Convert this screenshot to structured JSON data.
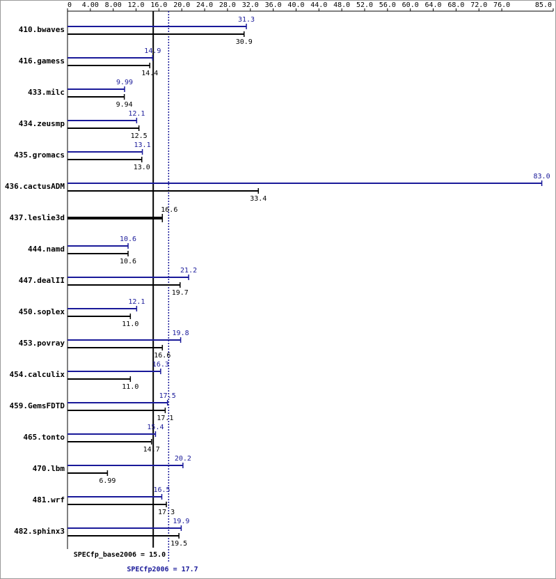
{
  "chart_data": {
    "type": "hbar",
    "categories": [
      "410.bwaves",
      "416.gamess",
      "433.milc",
      "434.zeusmp",
      "435.gromacs",
      "436.cactusADM",
      "437.leslie3d",
      "444.namd",
      "447.dealII",
      "450.soplex",
      "453.povray",
      "454.calculix",
      "459.GemsFDTD",
      "465.tonto",
      "470.lbm",
      "481.wrf",
      "482.sphinx3"
    ],
    "series": [
      {
        "color": "#191999",
        "values": [
          31.3,
          14.9,
          9.99,
          12.1,
          13.1,
          83.0,
          null,
          10.6,
          21.2,
          12.1,
          19.8,
          16.3,
          17.5,
          15.4,
          20.2,
          16.5,
          19.9
        ],
        "value_labels": [
          "31.3",
          "14.9",
          "9.99",
          "12.1",
          "13.1",
          "83.0",
          null,
          "10.6",
          "21.2",
          "12.1",
          "19.8",
          "16.3",
          "17.5",
          "15.4",
          "20.2",
          "16.5",
          "19.9"
        ]
      },
      {
        "color": "#000000",
        "values": [
          30.9,
          14.4,
          9.94,
          12.5,
          13.0,
          33.4,
          16.6,
          10.6,
          19.7,
          11.0,
          16.6,
          11.0,
          17.1,
          14.7,
          6.99,
          17.3,
          19.5
        ],
        "value_labels": [
          "30.9",
          "14.4",
          "9.94",
          "12.5",
          "13.0",
          "33.4",
          "16.6",
          "10.6",
          "19.7",
          "11.0",
          "16.6",
          "11.0",
          "17.1",
          "14.7",
          "6.99",
          "17.3",
          "19.5"
        ]
      }
    ],
    "xlim": [
      0,
      85
    ],
    "xticks": [
      0,
      {
        "value": 4,
        "label": "4.00"
      },
      {
        "value": 8,
        "label": "8.00"
      },
      {
        "value": 12,
        "label": "12.0"
      },
      {
        "value": 16,
        "label": "16.0"
      },
      {
        "value": 20,
        "label": "20.0"
      },
      {
        "value": 24,
        "label": "24.0"
      },
      {
        "value": 28,
        "label": "28.0"
      },
      {
        "value": 32,
        "label": "32.0"
      },
      {
        "value": 36,
        "label": "36.0"
      },
      {
        "value": 40,
        "label": "40.0"
      },
      {
        "value": 44,
        "label": "44.0"
      },
      {
        "value": 48,
        "label": "48.0"
      },
      {
        "value": 52,
        "label": "52.0"
      },
      {
        "value": 56,
        "label": "56.0"
      },
      {
        "value": 60,
        "label": "60.0"
      },
      {
        "value": 64,
        "label": "64.0"
      },
      {
        "value": 68,
        "label": "68.0"
      },
      {
        "value": 72,
        "label": "72.0"
      },
      {
        "value": 76,
        "label": "76.0"
      },
      {
        "value": 85,
        "label": "85.0"
      }
    ],
    "reference_lines": [
      {
        "label": "SPECfp_base2006 = 15.0",
        "value": 15.0,
        "color": "#000000",
        "style": "solid"
      },
      {
        "label": "SPECfp2006 = 17.7",
        "value": 17.7,
        "color": "#191999",
        "style": "dotted"
      }
    ]
  }
}
